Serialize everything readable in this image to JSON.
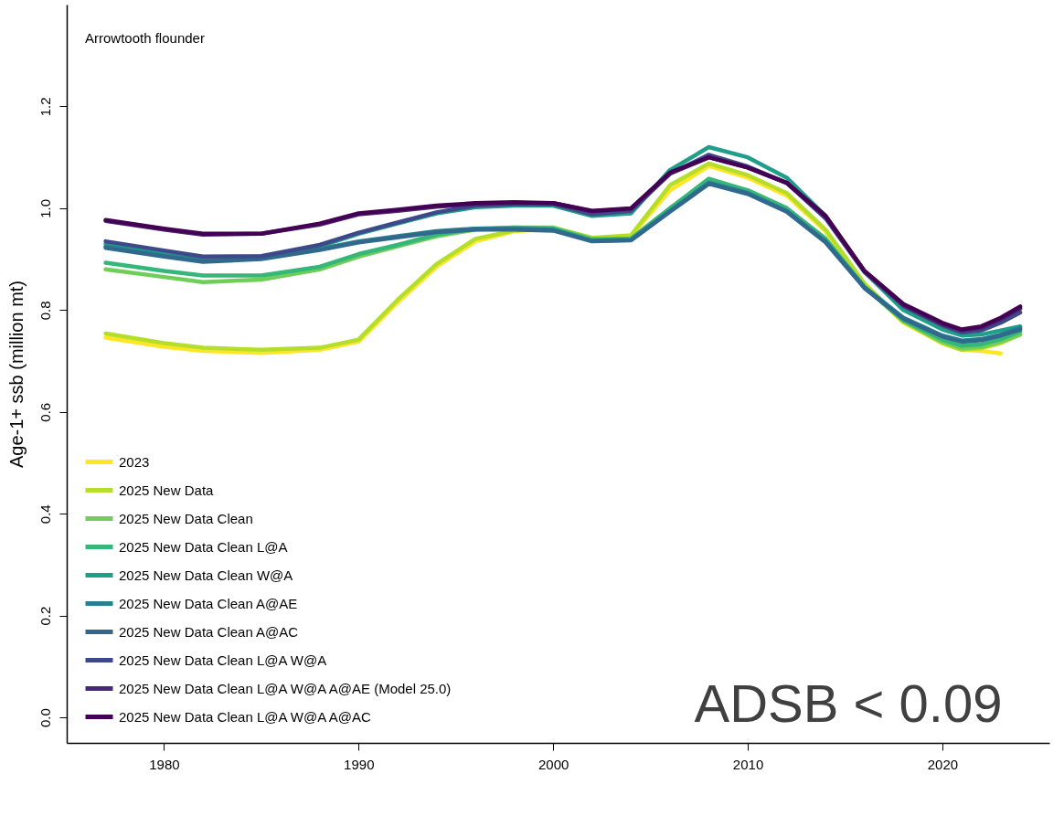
{
  "chart_data": {
    "type": "line",
    "ylabel": "Age-1+ ssb (million mt)",
    "annotations": [
      "Arrowtooth flounder",
      "ADSB < 0.09"
    ],
    "x": [
      1977,
      1980,
      1982,
      1985,
      1988,
      1990,
      1992,
      1994,
      1996,
      1998,
      2000,
      2002,
      2004,
      2006,
      2008,
      2010,
      2012,
      2014,
      2016,
      2018,
      2020,
      2021,
      2022,
      2023,
      2024
    ],
    "xlim": [
      1975,
      2025.5
    ],
    "xticks": [
      1980,
      1990,
      2000,
      2010,
      2020
    ],
    "ylim": [
      -0.05,
      1.4
    ],
    "yticks": [
      {
        "value": 0,
        "label": "0.0"
      },
      {
        "value": 0.2,
        "label": "0.2"
      },
      {
        "value": 0.4,
        "label": "0.4"
      },
      {
        "value": 0.6,
        "label": "0.6"
      },
      {
        "value": 0.8,
        "label": "0.8"
      },
      {
        "value": 1.0,
        "label": "1.0"
      },
      {
        "value": 1.2,
        "label": "1.2"
      }
    ],
    "grid": false,
    "legend": "bottom left",
    "series": [
      {
        "name": "2023",
        "color": "#fde725",
        "values": [
          0.746,
          0.728,
          0.72,
          0.716,
          0.722,
          0.738,
          0.815,
          0.885,
          0.935,
          0.955,
          0.96,
          0.94,
          0.945,
          1.035,
          1.083,
          1.06,
          1.025,
          0.955,
          0.85,
          0.775,
          0.735,
          0.722,
          0.72,
          0.715,
          null
        ]
      },
      {
        "name": "2025 New Data",
        "color": "#b5de2b",
        "values": [
          0.754,
          0.735,
          0.726,
          0.722,
          0.726,
          0.742,
          0.82,
          0.89,
          0.94,
          0.956,
          0.962,
          0.942,
          0.947,
          1.045,
          1.088,
          1.065,
          1.03,
          0.958,
          0.852,
          0.778,
          0.735,
          0.722,
          0.725,
          0.735,
          0.752
        ]
      },
      {
        "name": "2025 New Data Clean",
        "color": "#6ece58",
        "values": [
          0.88,
          0.865,
          0.855,
          0.86,
          0.88,
          0.905,
          0.925,
          0.945,
          0.958,
          0.962,
          0.962,
          0.94,
          0.94,
          1.0,
          1.055,
          1.035,
          1.0,
          0.94,
          0.845,
          0.778,
          0.738,
          0.725,
          0.728,
          0.738,
          0.752
        ]
      },
      {
        "name": "2025 New Data Clean L@A",
        "color": "#35b779",
        "values": [
          0.893,
          0.877,
          0.868,
          0.868,
          0.885,
          0.91,
          0.928,
          0.948,
          0.96,
          0.962,
          0.96,
          0.938,
          0.94,
          1.0,
          1.058,
          1.035,
          1.0,
          0.94,
          0.845,
          0.78,
          0.742,
          0.73,
          0.733,
          0.743,
          0.758
        ]
      },
      {
        "name": "2025 New Data Clean W@A",
        "color": "#1f9e89",
        "values": [
          0.93,
          0.912,
          0.902,
          0.905,
          0.925,
          0.95,
          0.97,
          0.99,
          1.002,
          1.005,
          1.005,
          0.985,
          0.99,
          1.075,
          1.12,
          1.1,
          1.06,
          0.985,
          0.875,
          0.8,
          0.762,
          0.75,
          0.752,
          0.76,
          0.768
        ]
      },
      {
        "name": "2025 New Data Clean A@AE",
        "color": "#26828e",
        "values": [
          0.925,
          0.907,
          0.898,
          0.902,
          0.92,
          0.935,
          0.945,
          0.955,
          0.96,
          0.96,
          0.958,
          0.936,
          0.938,
          0.995,
          1.05,
          1.03,
          0.995,
          0.935,
          0.845,
          0.785,
          0.75,
          0.74,
          0.743,
          0.752,
          0.765
        ]
      },
      {
        "name": "2025 New Data Clean A@AC",
        "color": "#31688e",
        "values": [
          0.922,
          0.905,
          0.895,
          0.9,
          0.918,
          0.933,
          0.943,
          0.953,
          0.958,
          0.958,
          0.956,
          0.935,
          0.937,
          0.993,
          1.048,
          1.028,
          0.993,
          0.933,
          0.843,
          0.783,
          0.748,
          0.738,
          0.741,
          0.75,
          0.762
        ]
      },
      {
        "name": "2025 New Data Clean L@A W@A",
        "color": "#3e4989",
        "values": [
          0.935,
          0.917,
          0.905,
          0.906,
          0.928,
          0.952,
          0.972,
          0.992,
          1.005,
          1.008,
          1.008,
          0.988,
          0.995,
          1.068,
          1.105,
          1.082,
          1.05,
          0.98,
          0.875,
          0.808,
          0.77,
          0.756,
          0.76,
          0.775,
          0.795
        ]
      },
      {
        "name": "2025 New Data Clean L@A W@A A@AE (Model 25.0)",
        "color": "#482878",
        "values": [
          0.975,
          0.958,
          0.948,
          0.95,
          0.968,
          0.988,
          0.995,
          1.003,
          1.008,
          1.01,
          1.01,
          0.994,
          0.999,
          1.068,
          1.1,
          1.08,
          1.05,
          0.983,
          0.876,
          0.81,
          0.772,
          0.76,
          0.765,
          0.782,
          0.803
        ]
      },
      {
        "name": "2025 New Data Clean L@A W@A A@AC",
        "color": "#440154",
        "values": [
          0.977,
          0.96,
          0.95,
          0.95,
          0.97,
          0.99,
          0.997,
          1.005,
          1.01,
          1.012,
          1.01,
          0.995,
          1.0,
          1.07,
          1.1,
          1.08,
          1.05,
          0.985,
          0.877,
          0.812,
          0.775,
          0.762,
          0.768,
          0.785,
          0.807
        ]
      }
    ]
  }
}
